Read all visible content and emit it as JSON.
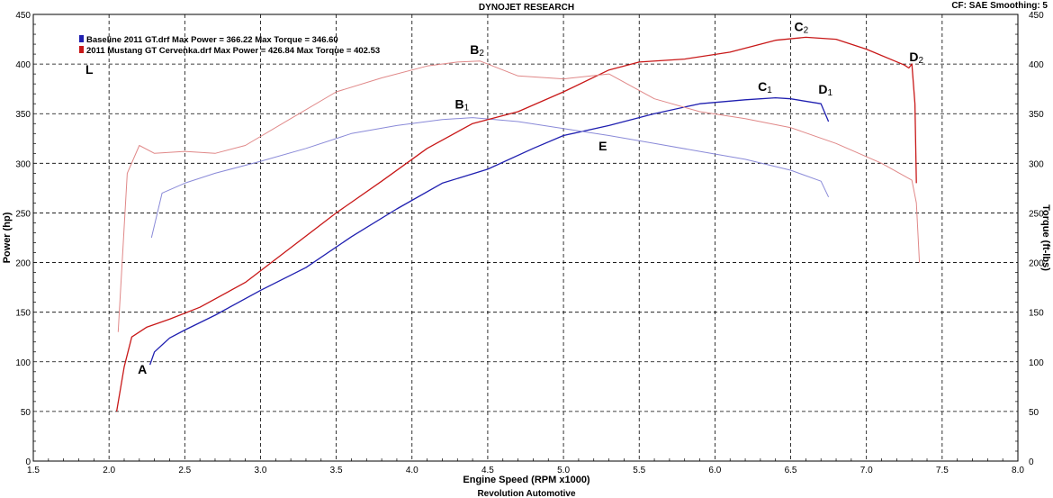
{
  "header": {
    "title": "DYNOJET RESEARCH",
    "settings": "CF: SAE  Smoothing: 5"
  },
  "footer": {
    "shop": "Revolution Automotive"
  },
  "legend": [
    {
      "text": "Baseline 2011 GT.drf Max Power = 366.22     Max Torque = 346.60",
      "color": "#1f1fb0"
    },
    {
      "text": "2011 Mustang GT Cervenka.drf Max Power = 426.84     Max Torque = 402.53",
      "color": "#c81818"
    }
  ],
  "chart_data": {
    "type": "line",
    "title": "DYNOJET RESEARCH",
    "xlabel": "Engine Speed (RPM x1000)",
    "ylabel": "Power (hp)",
    "y2label": "Torque (ft-lbs)",
    "xlim": [
      1.5,
      8.0
    ],
    "ylim": [
      0,
      450
    ],
    "x_ticks": [
      "1.5",
      "2.0",
      "2.5",
      "3.0",
      "3.5",
      "4.0",
      "4.5",
      "5.0",
      "5.5",
      "6.0",
      "6.5",
      "7.0",
      "7.5",
      "8.0"
    ],
    "y_ticks": [
      "0",
      "50",
      "100",
      "150",
      "200",
      "250",
      "300",
      "350",
      "400",
      "450"
    ],
    "grid": true,
    "series": [
      {
        "name": "Baseline 2011 GT.drf",
        "measure": "power",
        "color": "#1f1fb0",
        "x": [
          2.27,
          2.3,
          2.4,
          2.5,
          2.7,
          3.0,
          3.3,
          3.6,
          3.9,
          4.2,
          4.5,
          4.8,
          5.0,
          5.3,
          5.6,
          5.9,
          6.2,
          6.4,
          6.5,
          6.7,
          6.75
        ],
        "y": [
          97,
          110,
          124,
          132,
          147,
          172,
          195,
          226,
          254,
          280,
          294,
          315,
          328,
          338,
          350,
          360,
          364,
          366,
          365,
          360,
          342
        ]
      },
      {
        "name": "Baseline 2011 GT.drf",
        "measure": "torque",
        "color": "#8a8ad8",
        "x": [
          2.28,
          2.35,
          2.5,
          2.7,
          3.0,
          3.3,
          3.6,
          3.9,
          4.2,
          4.4,
          4.7,
          5.0,
          5.3,
          5.6,
          5.9,
          6.2,
          6.5,
          6.7,
          6.75
        ],
        "y": [
          225,
          270,
          280,
          290,
          302,
          315,
          330,
          338,
          344,
          346,
          342,
          335,
          328,
          320,
          312,
          304,
          293,
          282,
          266
        ]
      },
      {
        "name": "2011 Mustang GT Cervenka.drf",
        "measure": "power",
        "color": "#c81818",
        "x": [
          2.05,
          2.1,
          2.15,
          2.25,
          2.4,
          2.6,
          2.9,
          3.2,
          3.5,
          3.8,
          4.1,
          4.4,
          4.7,
          5.0,
          5.3,
          5.5,
          5.8,
          6.1,
          6.4,
          6.6,
          6.8,
          7.0,
          7.25,
          7.28,
          7.3,
          7.32,
          7.33
        ],
        "y": [
          50,
          95,
          125,
          135,
          143,
          155,
          180,
          215,
          250,
          282,
          315,
          340,
          352,
          372,
          394,
          402,
          405,
          412,
          424,
          427,
          425,
          415,
          399,
          396,
          400,
          360,
          280
        ]
      },
      {
        "name": "2011 Mustang GT Cervenka.drf",
        "measure": "torque",
        "color": "#e08888",
        "x": [
          2.06,
          2.12,
          2.2,
          2.3,
          2.5,
          2.7,
          2.9,
          3.2,
          3.5,
          3.8,
          4.1,
          4.3,
          4.45,
          4.7,
          5.0,
          5.3,
          5.6,
          5.9,
          6.2,
          6.5,
          6.8,
          7.1,
          7.3,
          7.33,
          7.35
        ],
        "y": [
          130,
          290,
          318,
          310,
          312,
          310,
          318,
          345,
          372,
          386,
          398,
          402,
          403,
          388,
          385,
          390,
          365,
          352,
          345,
          336,
          320,
          300,
          283,
          260,
          200
        ]
      }
    ],
    "annotations": [
      {
        "text": "A",
        "x": 2.22,
        "y": 88
      },
      {
        "text": "B",
        "sub": "1",
        "x": 4.33,
        "y": 355
      },
      {
        "text": "B",
        "sub": "2",
        "x": 4.43,
        "y": 410
      },
      {
        "text": "C",
        "sub": "1",
        "x": 6.33,
        "y": 373
      },
      {
        "text": "C",
        "sub": "2",
        "x": 6.57,
        "y": 433
      },
      {
        "text": "D",
        "sub": "1",
        "x": 6.73,
        "y": 370
      },
      {
        "text": "D",
        "sub": "2",
        "x": 7.33,
        "y": 403
      },
      {
        "text": "E",
        "x": 5.26,
        "y": 313
      },
      {
        "text": "L",
        "x": 1.87,
        "y": 390
      }
    ]
  }
}
